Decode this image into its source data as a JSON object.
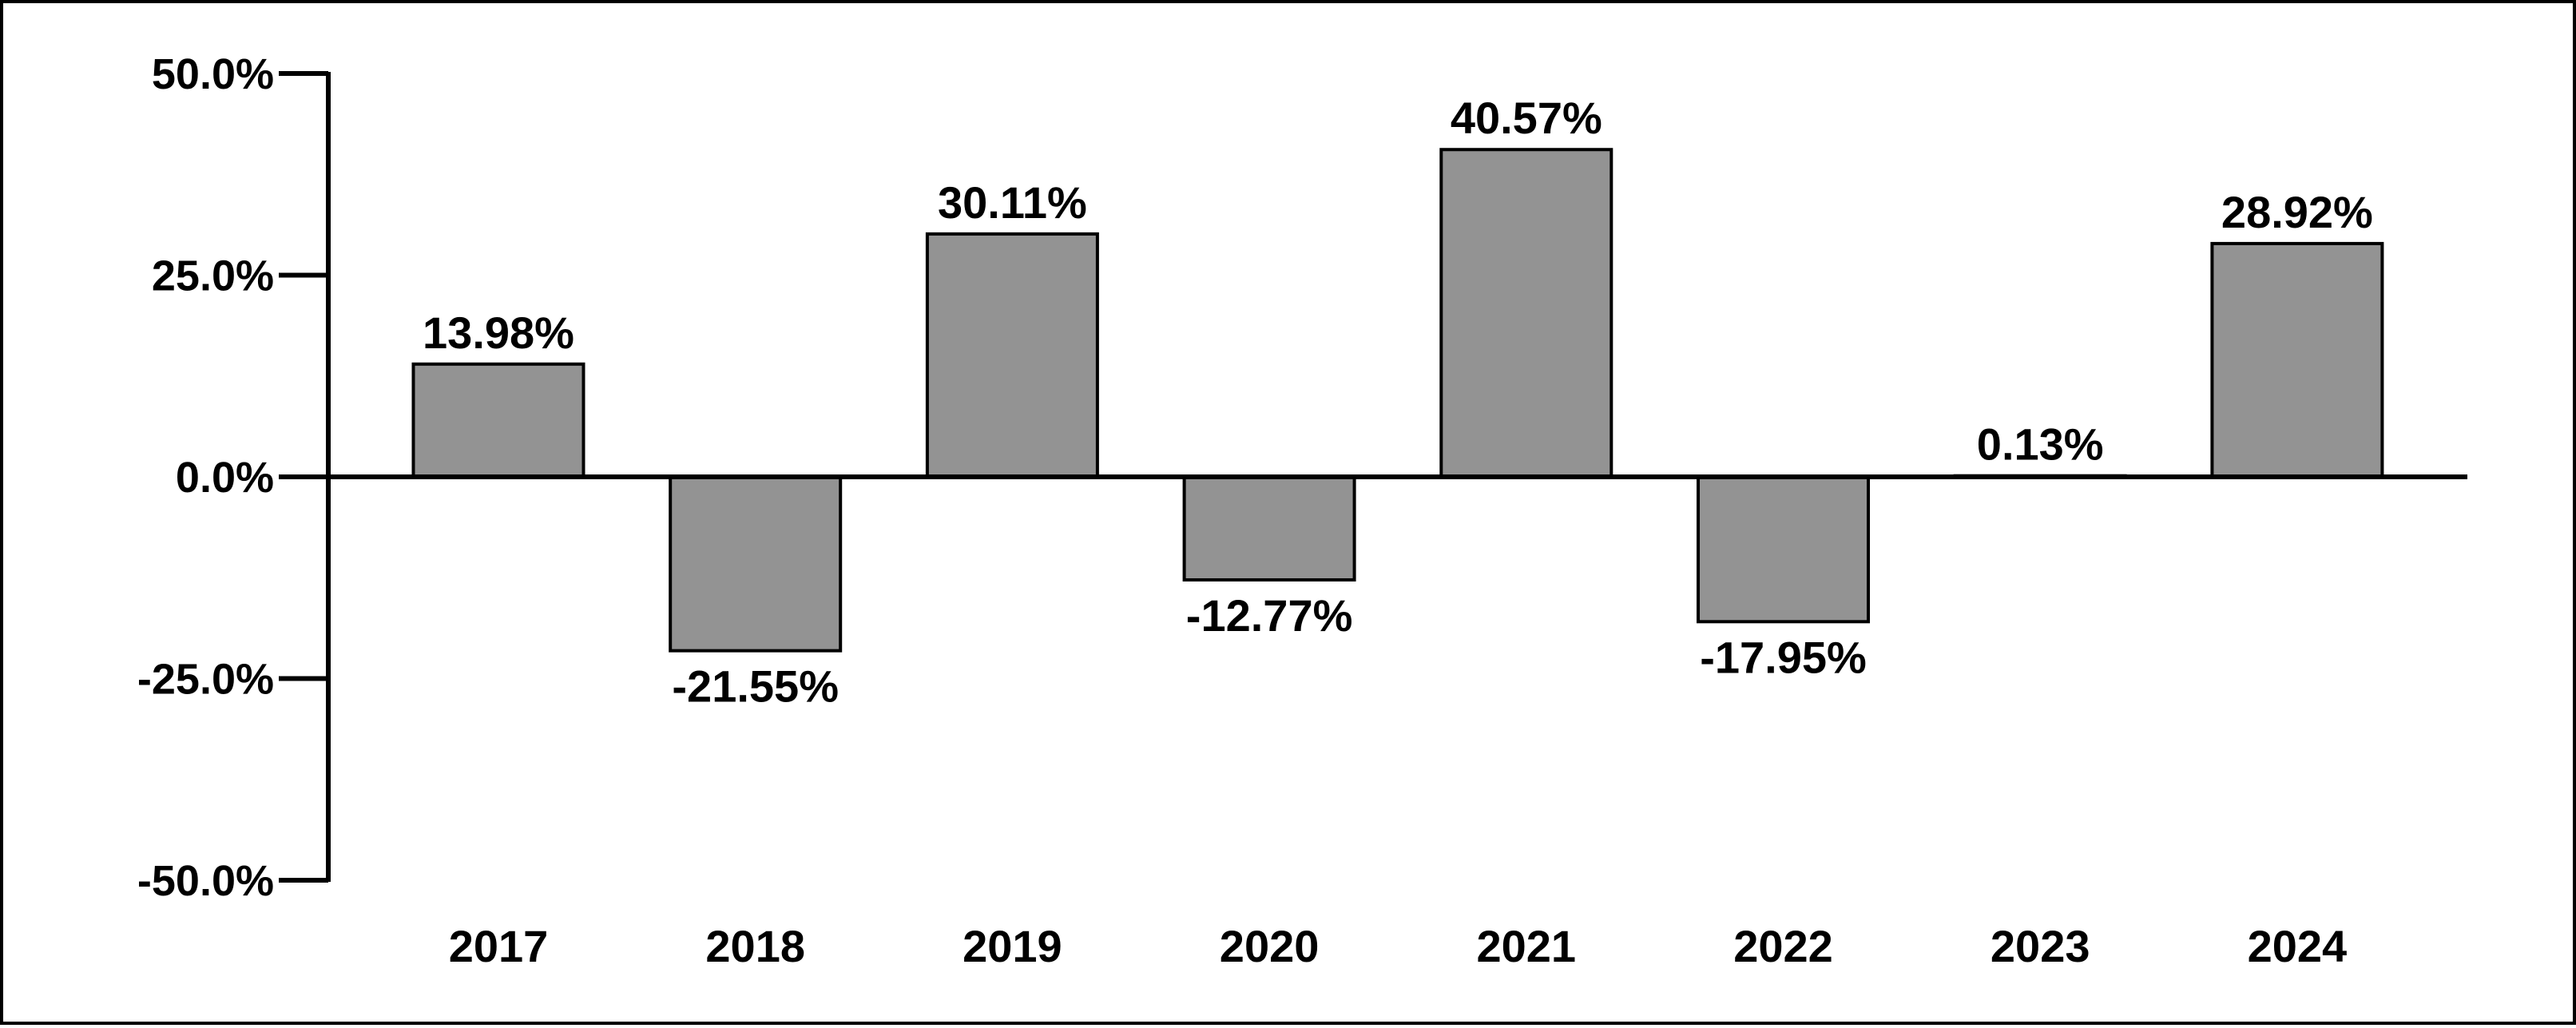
{
  "chart_data": {
    "type": "bar",
    "title": "",
    "xlabel": "",
    "ylabel": "",
    "categories": [
      "2017",
      "2018",
      "2019",
      "2020",
      "2021",
      "2022",
      "2023",
      "2024"
    ],
    "values": [
      13.98,
      -21.55,
      30.11,
      -12.77,
      40.57,
      -17.95,
      0.13,
      28.92
    ],
    "data_labels": [
      "13.98%",
      "-21.55%",
      "30.11%",
      "-12.77%",
      "40.57%",
      "-17.95%",
      "0.13%",
      "28.92%"
    ],
    "y_ticks": [
      50,
      25,
      0,
      -25,
      -50
    ],
    "y_tick_labels": [
      "50.0%",
      "25.0%",
      "0.0%",
      "-25.0%",
      "-50.0%"
    ],
    "ylim": [
      -50,
      50
    ],
    "grid": false,
    "legend": "none",
    "colors": {
      "bar_fill": "#939393",
      "bar_stroke": "#000000",
      "axis": "#000000",
      "text": "#000000",
      "background": "#ffffff"
    }
  }
}
